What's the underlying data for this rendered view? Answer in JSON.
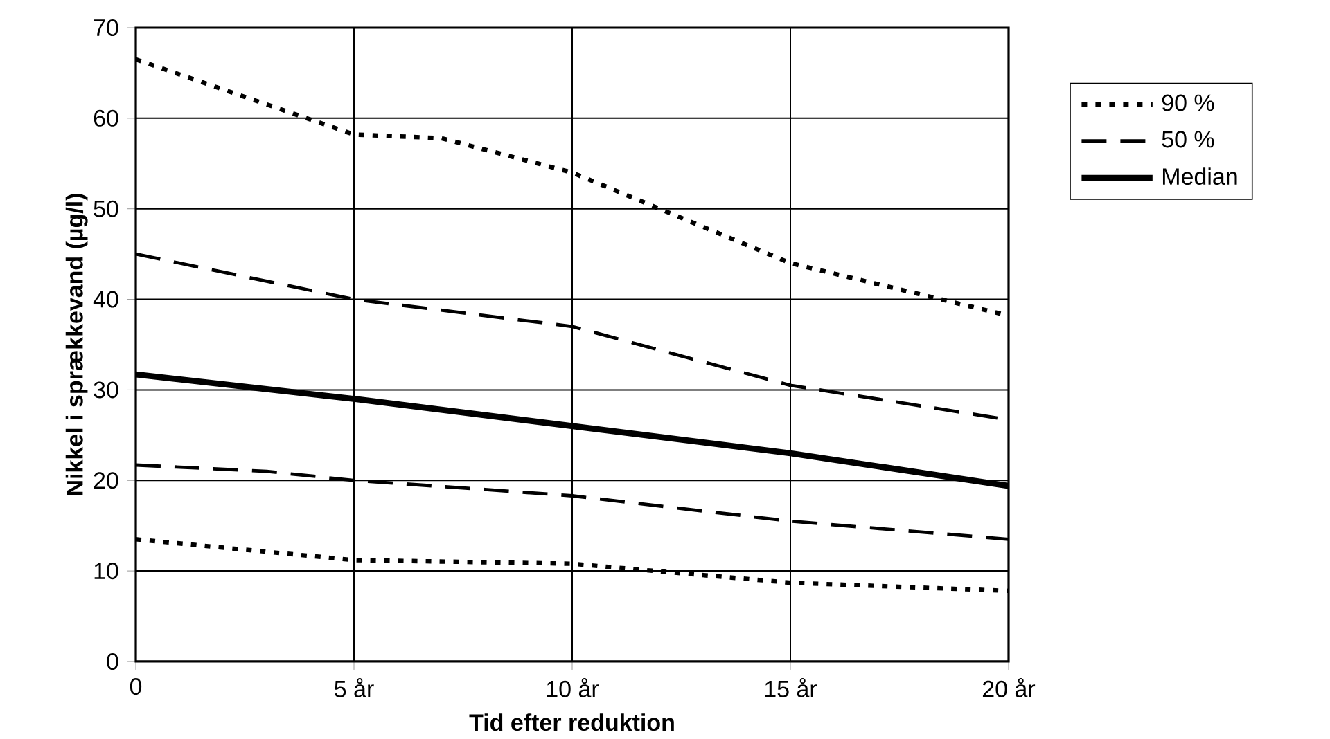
{
  "chart_data": {
    "type": "line",
    "xlabel": "Tid efter reduktion",
    "ylabel": "Nikkel i sprækkevand (µg/l)",
    "xlim": [
      0,
      20
    ],
    "ylim": [
      0,
      70
    ],
    "xticks": [
      0,
      {
        "value": 5,
        "label": "5 år"
      },
      {
        "value": 10,
        "label": "10 år"
      },
      {
        "value": 15,
        "label": "15 år"
      },
      {
        "value": 20,
        "label": "20 år"
      }
    ],
    "yticks": [
      0,
      10,
      20,
      30,
      40,
      50,
      60,
      70
    ],
    "grid": true,
    "legend": "right",
    "series": [
      {
        "name": "90 %",
        "color": "#000000",
        "line_style": "dotted",
        "x": [
          0,
          5,
          7,
          10,
          12,
          15,
          20
        ],
        "values": [
          66.5,
          58.2,
          57.8,
          54,
          50,
          44,
          38.2
        ]
      },
      {
        "name": "50 %",
        "color": "#000000",
        "line_style": "dashed",
        "x": [
          0,
          5,
          8,
          10,
          15,
          20
        ],
        "values": [
          45,
          40,
          38.2,
          37,
          30.5,
          26.7
        ]
      },
      {
        "name": "Median",
        "color": "#000000",
        "line_style": "solid",
        "x": [
          0,
          5,
          10,
          15,
          20
        ],
        "values": [
          31.7,
          29,
          26,
          23,
          19.4
        ]
      },
      {
        "color": "#000000",
        "line_style": "dashed",
        "x": [
          0,
          3,
          5,
          8,
          10,
          15,
          20
        ],
        "values": [
          21.7,
          21,
          20,
          19,
          18.3,
          15.5,
          13.5
        ]
      },
      {
        "color": "#000000",
        "line_style": "dotted",
        "x": [
          0,
          5,
          10,
          15,
          20
        ],
        "values": [
          13.5,
          11.2,
          10.8,
          8.7,
          7.8
        ]
      }
    ]
  }
}
